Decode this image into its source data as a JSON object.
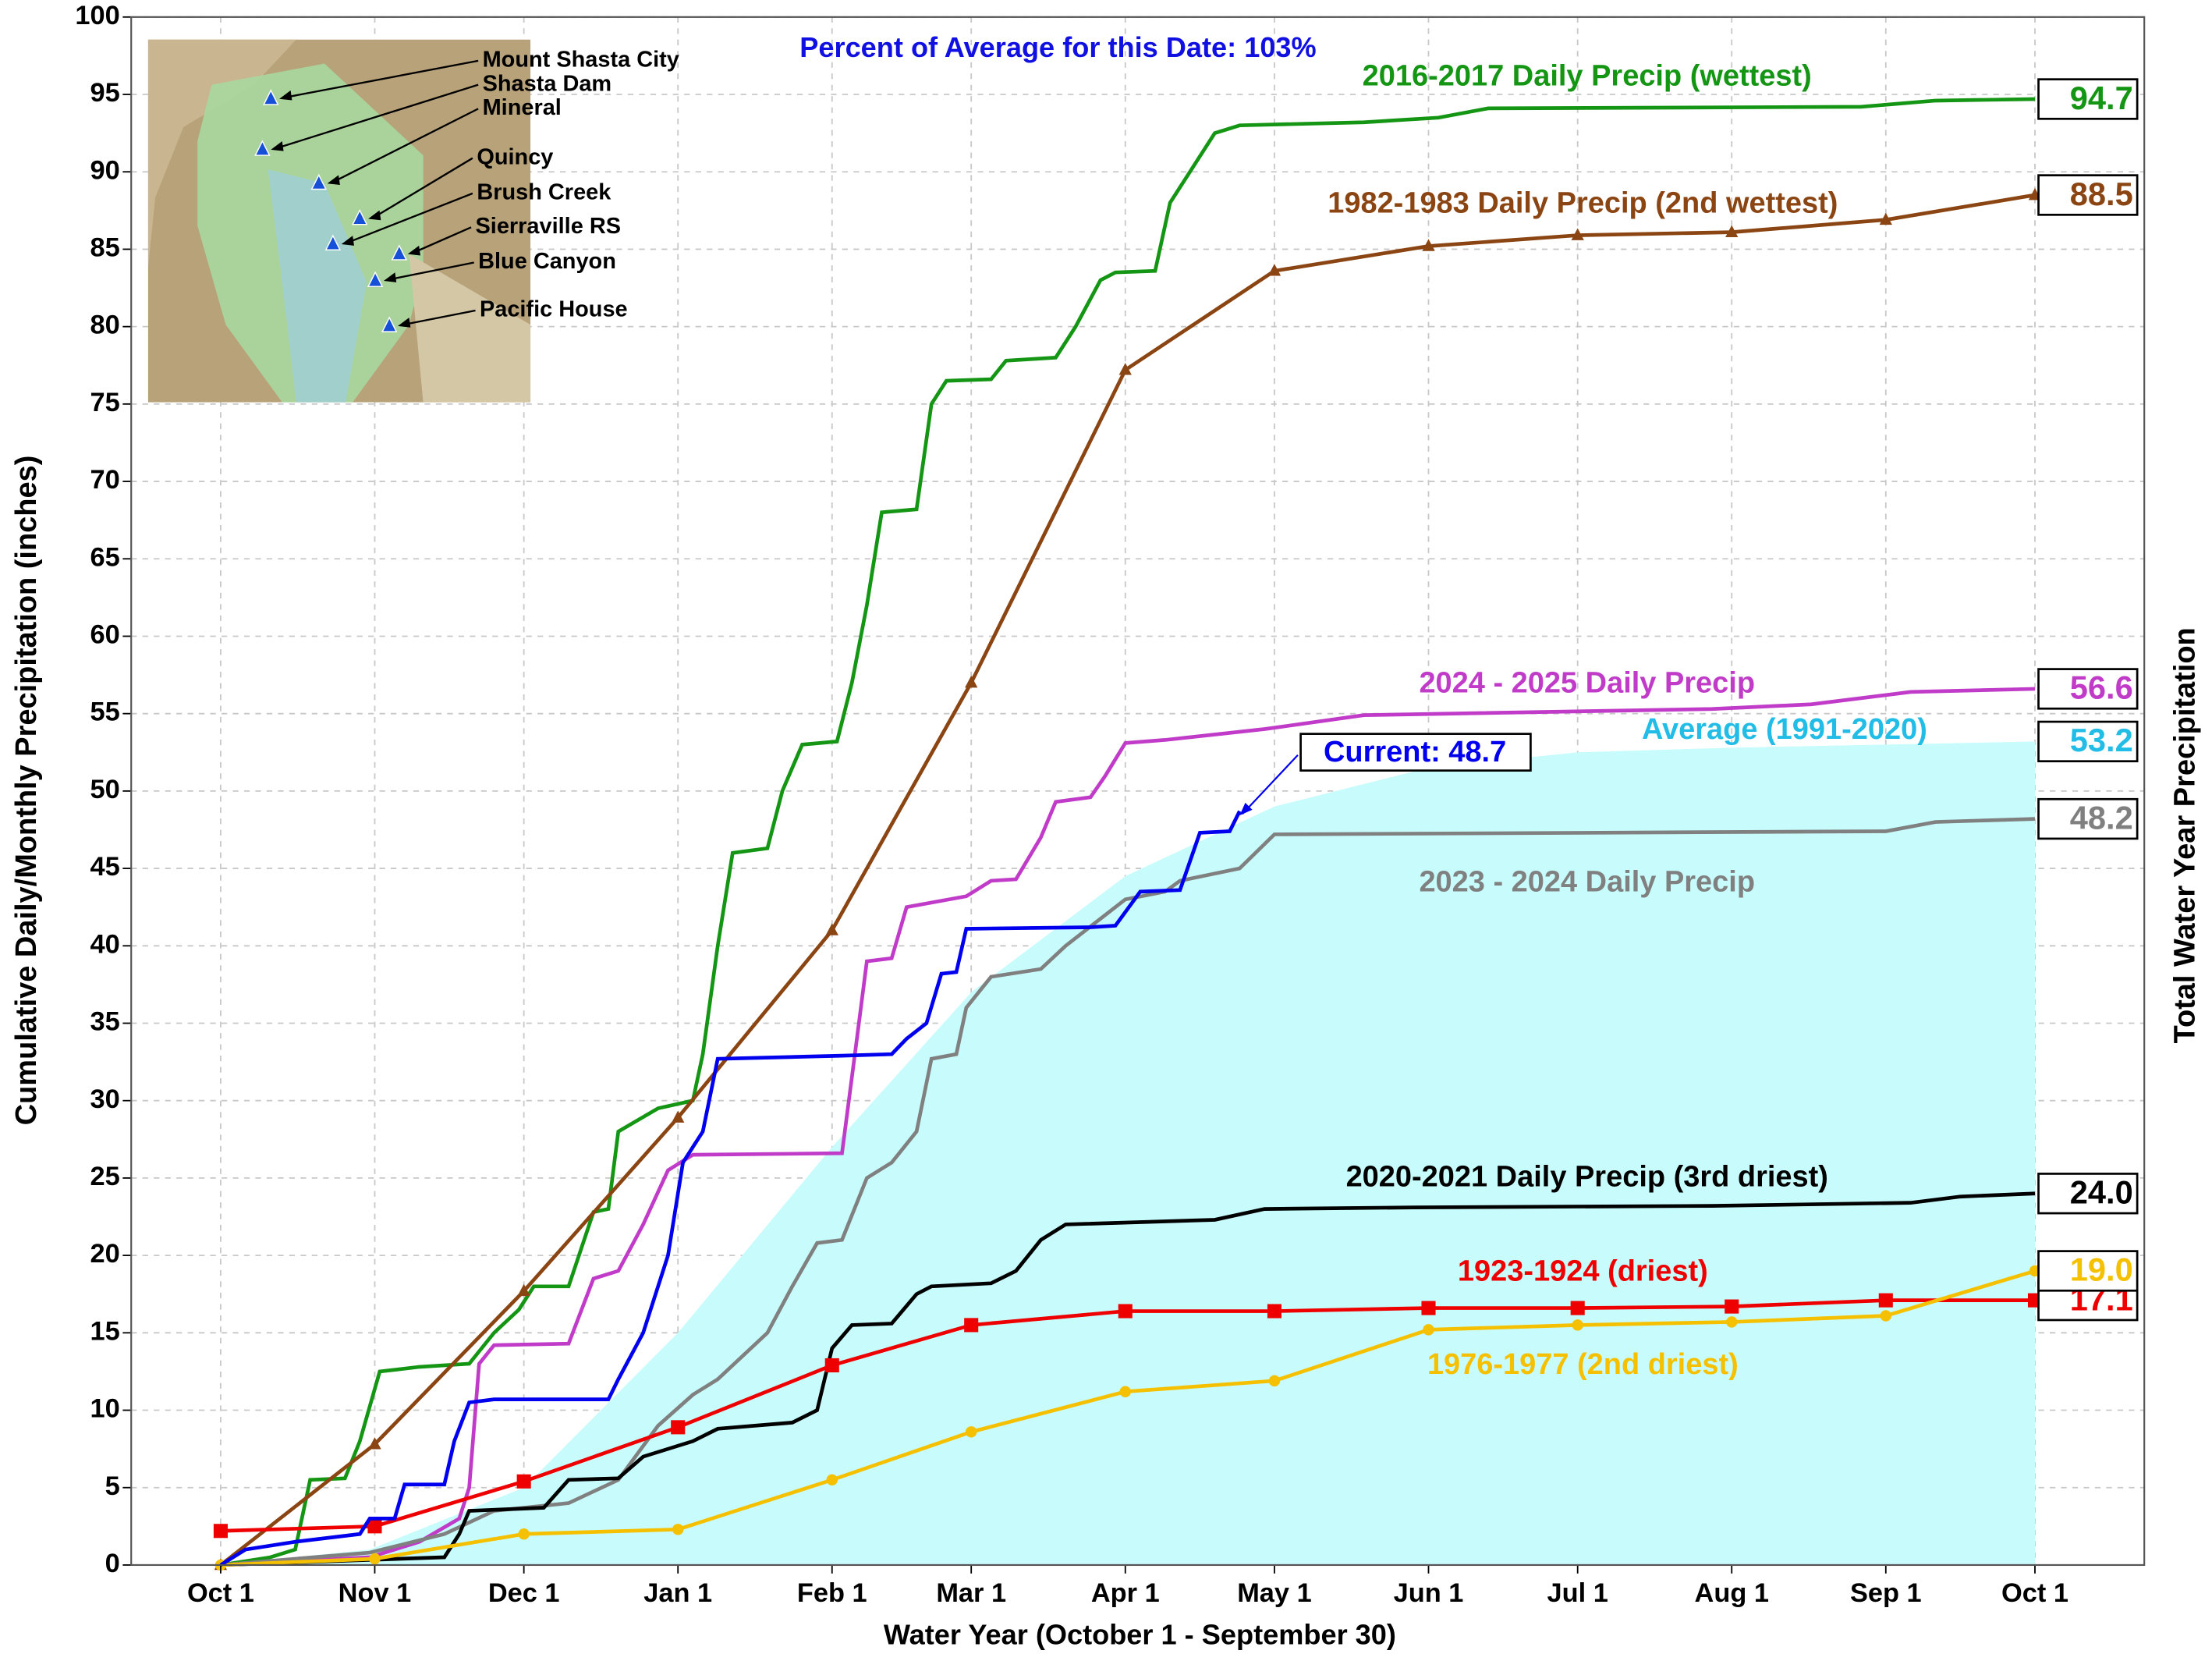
{
  "chart_data": {
    "type": "line",
    "subtitle": "Percent of Average for this Date: 103%",
    "xlabel": "Water Year (October 1 - September 30)",
    "ylabel": "Cumulative Daily/Monthly Precipitation (inches)",
    "y2label": "Total Water Year Precipitation",
    "xlim": [
      -18,
      387
    ],
    "ylim": [
      0,
      100
    ],
    "xticks": [
      {
        "value": 0,
        "label": "Oct 1"
      },
      {
        "value": 31,
        "label": "Nov 1"
      },
      {
        "value": 61,
        "label": "Dec 1"
      },
      {
        "value": 92,
        "label": "Jan 1"
      },
      {
        "value": 123,
        "label": "Feb 1"
      },
      {
        "value": 151,
        "label": "Mar 1"
      },
      {
        "value": 182,
        "label": "Apr 1"
      },
      {
        "value": 212,
        "label": "May 1"
      },
      {
        "value": 243,
        "label": "Jun 1"
      },
      {
        "value": 273,
        "label": "Jul 1"
      },
      {
        "value": 304,
        "label": "Aug 1"
      },
      {
        "value": 335,
        "label": "Sep 1"
      },
      {
        "value": 365,
        "label": "Oct 1"
      }
    ],
    "yticks": [
      0,
      5,
      10,
      15,
      20,
      25,
      30,
      35,
      40,
      45,
      50,
      55,
      60,
      65,
      70,
      75,
      80,
      85,
      90,
      95,
      100
    ],
    "grid": true,
    "series": [
      {
        "name": "Average (1991-2020)",
        "color": "#c8fcfc",
        "label_color": "#22bde6",
        "style": "area",
        "total_label": "53.2",
        "x": [
          0,
          30,
          61,
          92,
          123,
          151,
          182,
          212,
          243,
          273,
          304,
          335,
          365
        ],
        "values": [
          0,
          1,
          5,
          15,
          27,
          37,
          44.5,
          49,
          51.5,
          52.5,
          52.8,
          53,
          53.2
        ]
      },
      {
        "name": "2016-2017 Daily Precip (wettest)",
        "color": "#149614",
        "style": "line",
        "total_label": "94.7",
        "x": [
          0,
          10,
          15,
          18,
          25,
          28,
          32,
          40,
          50,
          55,
          60,
          63,
          70,
          75,
          78,
          80,
          88,
          95,
          97,
          100,
          103,
          110,
          113,
          117,
          124,
          127,
          130,
          133,
          140,
          143,
          146,
          155,
          158,
          168,
          172,
          177,
          180,
          188,
          191,
          195,
          200,
          205,
          230,
          245,
          255,
          330,
          345,
          365
        ],
        "values": [
          0,
          0.5,
          1,
          5.5,
          5.6,
          8,
          12.5,
          12.8,
          13,
          15,
          16.5,
          18,
          18,
          22.8,
          23,
          28,
          29.5,
          30,
          33,
          40,
          46,
          46.3,
          50,
          53,
          53.2,
          57,
          62,
          68,
          68.2,
          75,
          76.5,
          76.6,
          77.8,
          78,
          80,
          83,
          83.5,
          83.6,
          88,
          90,
          92.5,
          93,
          93.2,
          93.5,
          94.1,
          94.2,
          94.6,
          94.7
        ]
      },
      {
        "name": "1982-1983 Daily Precip (2nd wettest)",
        "color": "#8b4513",
        "style": "line",
        "marker": "triangle",
        "total_label": "88.5",
        "x": [
          0,
          31,
          61,
          92,
          123,
          151,
          182,
          212,
          243,
          273,
          304,
          335,
          365
        ],
        "values": [
          0,
          7.8,
          17.7,
          28.9,
          41,
          57,
          77.2,
          83.6,
          85.2,
          85.9,
          86.1,
          86.9,
          88.5
        ]
      },
      {
        "name": "2024 - 2025 Daily Precip",
        "color": "#c03cc8",
        "style": "line",
        "total_label": "56.6",
        "x": [
          0,
          30,
          40,
          48,
          50,
          52,
          55,
          70,
          75,
          80,
          85,
          90,
          95,
          125,
          128,
          130,
          135,
          138,
          150,
          155,
          160,
          165,
          168,
          175,
          178,
          182,
          190,
          210,
          230,
          300,
          320,
          340,
          365
        ],
        "values": [
          0,
          0.5,
          1.5,
          3,
          5,
          13,
          14.2,
          14.3,
          18.5,
          19,
          22,
          25.5,
          26.5,
          26.6,
          34,
          39,
          39.2,
          42.5,
          43.2,
          44.2,
          44.3,
          47,
          49.3,
          49.6,
          51,
          53.1,
          53.3,
          54,
          54.9,
          55.3,
          55.6,
          56.4,
          56.6
        ]
      },
      {
        "name": "2023 - 2024 Daily Precip",
        "color": "#808080",
        "style": "line",
        "total_label": "48.2",
        "x": [
          0,
          30,
          45,
          55,
          70,
          80,
          88,
          95,
          100,
          110,
          115,
          120,
          125,
          130,
          135,
          140,
          143,
          148,
          150,
          155,
          165,
          170,
          178,
          182,
          190,
          193,
          205,
          212,
          335,
          345,
          365
        ],
        "values": [
          0,
          0.8,
          2,
          3.5,
          4,
          5.5,
          9,
          11,
          12,
          15,
          18,
          20.8,
          21,
          25,
          26,
          28,
          32.7,
          33,
          36,
          38,
          38.5,
          40,
          42,
          43,
          43.5,
          44.2,
          45,
          47.2,
          47.4,
          48,
          48.2
        ]
      },
      {
        "name": "2020-2021 Daily Precip (3rd driest)",
        "color": "#000000",
        "style": "line",
        "total_label": "24.0",
        "x": [
          0,
          45,
          48,
          50,
          65,
          70,
          80,
          85,
          95,
          100,
          115,
          120,
          123,
          127,
          135,
          140,
          143,
          155,
          160,
          165,
          170,
          200,
          210,
          240,
          300,
          340,
          350,
          365
        ],
        "values": [
          0,
          0.5,
          2,
          3.5,
          3.7,
          5.5,
          5.6,
          7,
          8,
          8.8,
          9.2,
          10,
          14,
          15.5,
          15.6,
          17.5,
          18,
          18.2,
          19,
          21,
          22,
          22.3,
          23,
          23.1,
          23.2,
          23.4,
          23.8,
          24
        ]
      },
      {
        "name": "1923-1924 (driest)",
        "color": "#ee0000",
        "style": "line",
        "marker": "square",
        "total_label": "17.1",
        "x": [
          0,
          31,
          61,
          92,
          123,
          151,
          182,
          212,
          243,
          273,
          304,
          335,
          365
        ],
        "values": [
          2.2,
          2.5,
          5.4,
          8.9,
          12.9,
          15.5,
          16.4,
          16.4,
          16.6,
          16.6,
          16.7,
          17.1,
          17.1
        ]
      },
      {
        "name": "1976-1977 (2nd driest)",
        "color": "#f5c000",
        "style": "line",
        "marker": "circle",
        "total_label": "19.0",
        "x": [
          0,
          31,
          61,
          92,
          123,
          151,
          182,
          212,
          243,
          273,
          304,
          335,
          365
        ],
        "values": [
          0,
          0.4,
          2,
          2.3,
          5.5,
          8.6,
          11.2,
          11.9,
          15.2,
          15.5,
          15.7,
          16.1,
          19
        ]
      },
      {
        "color": "#0000ee",
        "style": "line",
        "callout": "Current: 48.7",
        "x": [
          0,
          5,
          15,
          28,
          30,
          35,
          37,
          45,
          47,
          50,
          55,
          78,
          80,
          85,
          90,
          93,
          97,
          100,
          125,
          135,
          138,
          142,
          145,
          148,
          150,
          175,
          180,
          185,
          193,
          197,
          203,
          205
        ],
        "values": [
          0,
          1,
          1.5,
          2,
          3,
          3,
          5.2,
          5.2,
          8,
          10.5,
          10.7,
          10.7,
          12,
          15,
          20,
          26,
          28,
          32.7,
          32.9,
          33,
          34,
          35,
          38.2,
          38.3,
          41.1,
          41.2,
          41.3,
          43.5,
          43.6,
          47.3,
          47.4,
          48.7
        ]
      }
    ]
  },
  "map": {
    "stations": [
      "Mount Shasta City",
      "Shasta Dam",
      "Mineral",
      "Quincy",
      "Brush Creek",
      "Sierraville RS",
      "Blue Canyon",
      "Pacific House"
    ]
  }
}
